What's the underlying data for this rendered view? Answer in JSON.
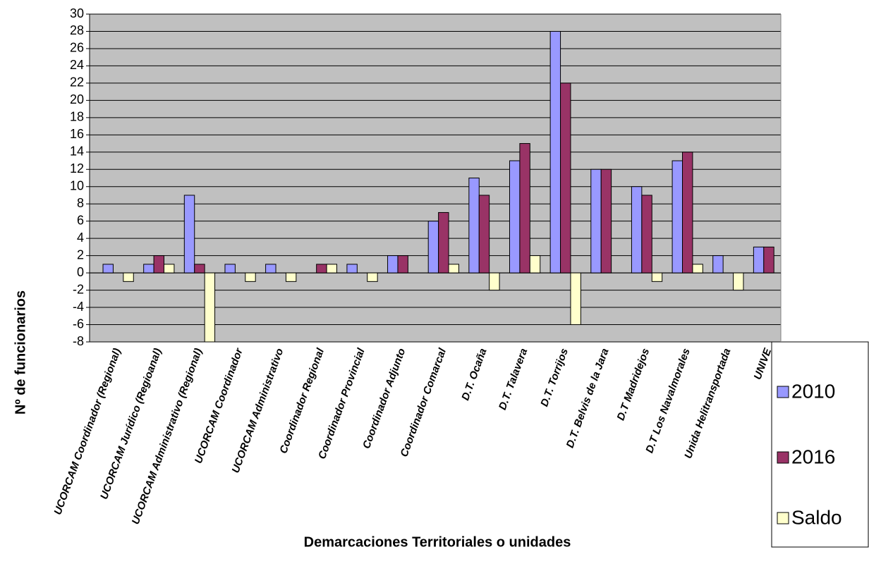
{
  "chart_data": {
    "type": "bar",
    "x_label": "Demarcaciones Territoriales o unidades",
    "y_label": "Nº de funcionarios",
    "categories": [
      "UCORCAM Coordinador  (Regional)",
      "UCORCAM  Jurídico (Regioanal)",
      "UCORCAM Administrativo (Regional)",
      "UCORCAM Coordinador",
      "UCORCAM Administrativo",
      "Coordinador Regional",
      "Coordinador Provincial",
      "Coordinador  Adjunto",
      "Coordinador Comarcal",
      "D.T. Ocaña",
      "D.T. Talavera",
      "D.T. Torrijos",
      "D.T. Belvis de la Jara",
      "D.T Madridejos",
      "D.T Los Navalmorales",
      "Unida Helitransportada",
      "UNIVE"
    ],
    "series": [
      {
        "name": "2010",
        "color": "#9999ff",
        "values": [
          1,
          1,
          9,
          1,
          1,
          0,
          1,
          2,
          6,
          11,
          13,
          28,
          12,
          10,
          13,
          2,
          3
        ]
      },
      {
        "name": "2016",
        "color": "#993366",
        "values": [
          0,
          2,
          1,
          0,
          0,
          1,
          0,
          2,
          7,
          9,
          15,
          22,
          12,
          9,
          14,
          0,
          3
        ]
      },
      {
        "name": "Saldo",
        "color": "#ffffcc",
        "values": [
          -1,
          1,
          -8,
          -1,
          -1,
          1,
          -1,
          0,
          1,
          -2,
          2,
          -6,
          0,
          -1,
          1,
          -2,
          0
        ]
      }
    ],
    "ylim": [
      -8,
      30
    ],
    "yticks": [
      -8,
      -6,
      -4,
      -2,
      0,
      2,
      4,
      6,
      8,
      10,
      12,
      14,
      16,
      18,
      20,
      22,
      24,
      26,
      28,
      30
    ],
    "grid": true,
    "legend": "right"
  }
}
